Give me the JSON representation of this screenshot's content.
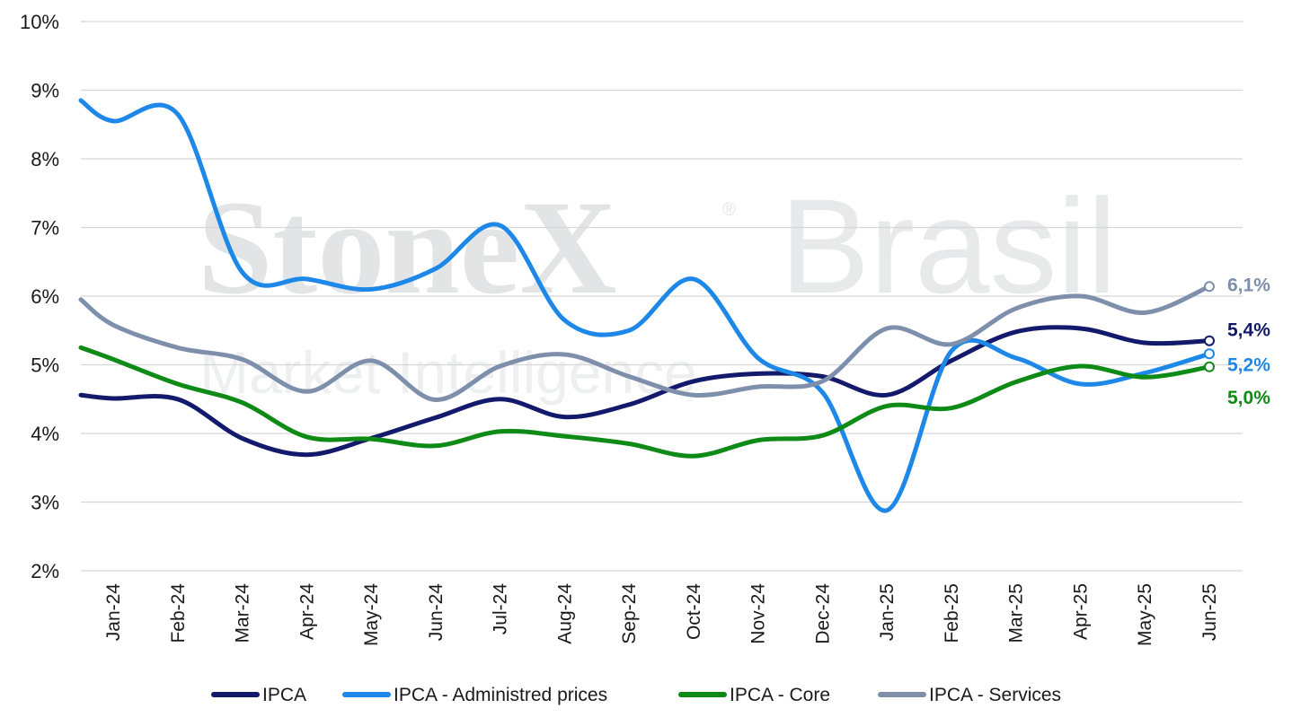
{
  "watermark": {
    "brand": "StoneX",
    "registered": "®",
    "country": "Brasil",
    "tagline": "Market Intelligence"
  },
  "chart_data": {
    "type": "line",
    "categories": [
      "Jan-24",
      "Feb-24",
      "Mar-24",
      "Apr-24",
      "May-24",
      "Jun-24",
      "Jul-24",
      "Aug-24",
      "Sep-24",
      "Oct-24",
      "Nov-24",
      "Dec-24",
      "Jan-25",
      "Feb-25",
      "Mar-25",
      "Apr-25",
      "May-25",
      "Jun-25"
    ],
    "yticks": [
      "2%",
      "3%",
      "4%",
      "5%",
      "6%",
      "7%",
      "8%",
      "9%",
      "10%"
    ],
    "ylim": [
      2,
      10
    ],
    "grid": true,
    "legend_position": "bottom",
    "series": [
      {
        "name": "IPCA",
        "color": "#141a6b",
        "values": [
          4.51,
          4.5,
          3.93,
          3.69,
          3.93,
          4.23,
          4.5,
          4.24,
          4.42,
          4.76,
          4.87,
          4.83,
          4.56,
          5.06,
          5.48,
          5.53,
          5.32,
          5.35
        ],
        "start_value": 4.56,
        "end_label": "5,4%"
      },
      {
        "name": "IPCA - Administred prices",
        "color": "#1e88e8",
        "values": [
          8.55,
          8.65,
          6.35,
          6.25,
          6.1,
          6.4,
          7.03,
          5.65,
          5.5,
          6.25,
          5.1,
          4.6,
          2.88,
          5.2,
          5.1,
          4.72,
          4.88,
          5.16
        ],
        "start_value": 8.85,
        "end_label": "5,2%"
      },
      {
        "name": "IPCA - Core",
        "color": "#0e8a16",
        "values": [
          5.08,
          4.72,
          4.45,
          3.95,
          3.92,
          3.82,
          4.03,
          3.96,
          3.85,
          3.67,
          3.9,
          3.97,
          4.4,
          4.37,
          4.75,
          4.98,
          4.82,
          4.97
        ],
        "start_value": 5.25,
        "end_label": "5,0%"
      },
      {
        "name": "IPCA - Services",
        "color": "#7e8fac",
        "values": [
          5.58,
          5.25,
          5.08,
          4.61,
          5.06,
          4.49,
          4.98,
          5.15,
          4.83,
          4.56,
          4.68,
          4.76,
          5.53,
          5.3,
          5.82,
          6.0,
          5.76,
          6.14
        ],
        "start_value": 5.95,
        "end_label": "6,1%"
      }
    ]
  }
}
